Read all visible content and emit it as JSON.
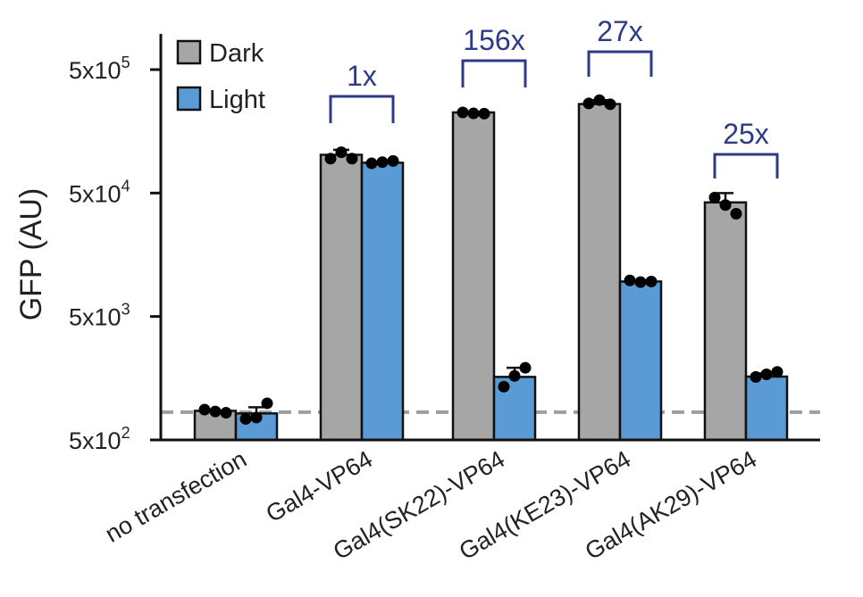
{
  "chart_data": {
    "type": "bar",
    "title": "",
    "xlabel": "",
    "ylabel": "GFP (AU)",
    "yscale": "log",
    "ylim": [
      500,
      1000000
    ],
    "yticks": [
      {
        "value": 500,
        "base": "5x10",
        "exp": "2"
      },
      {
        "value": 5000,
        "base": "5x10",
        "exp": "3"
      },
      {
        "value": 50000,
        "base": "5x10",
        "exp": "4"
      },
      {
        "value": 500000,
        "base": "5x10",
        "exp": "5"
      }
    ],
    "categories": [
      "no transfection",
      "Gal4-VP64",
      "Gal4(SK22)-VP64",
      "Gal4(KE23)-VP64",
      "Gal4(AK29)-VP64"
    ],
    "series": [
      {
        "name": "Dark",
        "color": "#a6a6a6",
        "values": [
          860,
          102000,
          225000,
          263000,
          42000
        ],
        "errors": [
          0,
          10000,
          0,
          20000,
          8000
        ],
        "points": [
          [
            880,
            850,
            830
          ],
          [
            95000,
            107000,
            95000
          ],
          [
            225000,
            221000,
            220000
          ],
          [
            266000,
            283000,
            262000
          ],
          [
            46000,
            40000,
            34000
          ]
        ]
      },
      {
        "name": "Light",
        "color": "#5b9bd5",
        "values": [
          820,
          88000,
          1620,
          9600,
          1630
        ],
        "errors": [
          100,
          0,
          300,
          0,
          100
        ],
        "points": [
          [
            740,
            760,
            990
          ],
          [
            87000,
            89000,
            91000
          ],
          [
            1350,
            1650,
            1920
          ],
          [
            9800,
            9500,
            9600
          ],
          [
            1620,
            1700,
            1780
          ]
        ]
      }
    ],
    "reference_line": {
      "value": 840,
      "style": "dashed",
      "color": "#9e9e9e"
    },
    "fold_changes": [
      {
        "category": "Gal4-VP64",
        "label": "1x"
      },
      {
        "category": "Gal4(SK22)-VP64",
        "label": "156x"
      },
      {
        "category": "Gal4(KE23)-VP64",
        "label": "27x"
      },
      {
        "category": "Gal4(AK29)-VP64",
        "label": "25x"
      }
    ],
    "annotation_color": "#2e3a87",
    "legend": {
      "position": "top-left",
      "entries": [
        "Dark",
        "Light"
      ]
    }
  }
}
